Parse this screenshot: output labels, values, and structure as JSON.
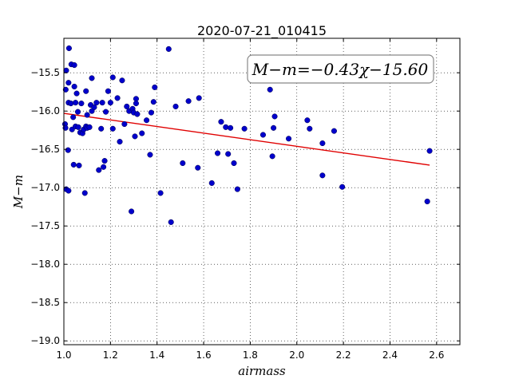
{
  "chart_data": {
    "type": "scatter",
    "title": "2020-07-21_010415",
    "xlabel": "airmass",
    "ylabel": "M−m",
    "xlim": [
      1.0,
      2.7
    ],
    "ylim": [
      -19.05,
      -15.05
    ],
    "y_inverted": true,
    "grid": true,
    "xticks": [
      "1.0",
      "1.2",
      "1.4",
      "1.6",
      "1.8",
      "2.0",
      "2.2",
      "2.4",
      "2.6"
    ],
    "yticks": [
      "−15.5",
      "−16.0",
      "−16.5",
      "−17.0",
      "−17.5",
      "−18.0",
      "−18.5",
      "−19.0"
    ],
    "annotation": "M−m=−0.43χ−15.60",
    "colors": {
      "points": "#0000cc",
      "fit": "#e00000"
    },
    "fit": {
      "slope": -0.43,
      "intercept": -15.6,
      "x": [
        1.0,
        2.57
      ]
    },
    "points": {
      "x": [
        1.005,
        1.007,
        1.008,
        1.01,
        1.01,
        1.018,
        1.02,
        1.02,
        1.02,
        1.022,
        1.03,
        1.032,
        1.035,
        1.04,
        1.042,
        1.045,
        1.045,
        1.05,
        1.05,
        1.055,
        1.06,
        1.062,
        1.065,
        1.07,
        1.075,
        1.08,
        1.085,
        1.09,
        1.095,
        1.095,
        1.1,
        1.1,
        1.11,
        1.115,
        1.12,
        1.12,
        1.13,
        1.14,
        1.15,
        1.16,
        1.165,
        1.17,
        1.175,
        1.18,
        1.19,
        1.2,
        1.21,
        1.21,
        1.23,
        1.24,
        1.25,
        1.26,
        1.27,
        1.28,
        1.29,
        1.295,
        1.3,
        1.305,
        1.31,
        1.31,
        1.315,
        1.335,
        1.355,
        1.37,
        1.375,
        1.385,
        1.39,
        1.415,
        1.45,
        1.46,
        1.48,
        1.51,
        1.535,
        1.575,
        1.58,
        1.635,
        1.66,
        1.675,
        1.695,
        1.705,
        1.715,
        1.73,
        1.745,
        1.775,
        1.855,
        1.885,
        1.895,
        1.9,
        1.905,
        1.965,
        2.045,
        2.055,
        2.11,
        2.11,
        2.16,
        2.195,
        2.56,
        2.57
      ],
      "y": [
        -16.17,
        -16.22,
        -15.72,
        -17.02,
        -15.47,
        -16.51,
        -15.63,
        -15.89,
        -17.04,
        -15.18,
        -15.9,
        -15.39,
        -16.24,
        -16.08,
        -16.7,
        -15.4,
        -15.68,
        -15.89,
        -16.2,
        -15.77,
        -16.01,
        -16.21,
        -16.71,
        -16.28,
        -15.9,
        -16.29,
        -16.24,
        -17.07,
        -16.2,
        -15.74,
        -16.22,
        -16.05,
        -16.21,
        -15.92,
        -15.57,
        -16.0,
        -15.95,
        -15.89,
        -16.77,
        -16.23,
        -15.89,
        -16.73,
        -16.65,
        -16.01,
        -15.74,
        -15.89,
        -15.56,
        -16.23,
        -15.83,
        -16.4,
        -15.6,
        -16.17,
        -15.94,
        -16.0,
        -17.31,
        -15.97,
        -16.02,
        -16.33,
        -15.84,
        -15.9,
        -16.04,
        -16.29,
        -16.12,
        -16.57,
        -16.02,
        -15.88,
        -15.69,
        -17.07,
        -15.19,
        -17.45,
        -15.94,
        -16.68,
        -15.87,
        -16.74,
        -15.83,
        -16.94,
        -16.55,
        -16.14,
        -16.21,
        -16.56,
        -16.22,
        -16.68,
        -17.02,
        -16.23,
        -16.31,
        -15.72,
        -16.59,
        -16.22,
        -16.07,
        -16.36,
        -16.12,
        -16.23,
        -16.84,
        -16.42,
        -16.26,
        -16.99,
        -17.18,
        -16.52
      ]
    }
  }
}
